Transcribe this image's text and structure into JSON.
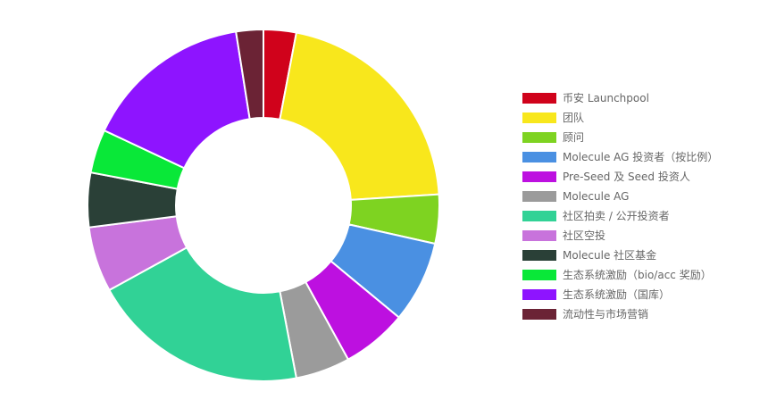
{
  "chart_data": {
    "type": "doughnut",
    "legend": "right",
    "segments": [
      {
        "label": "币安 Launchpool",
        "value": 3,
        "color": "#d0021b"
      },
      {
        "label": "团队",
        "value": 21,
        "color": "#f8e71c"
      },
      {
        "label": "顾问",
        "value": 4.5,
        "color": "#7ed321"
      },
      {
        "label": "Molecule AG 投资者（按比例）",
        "value": 7.5,
        "color": "#4a90e2"
      },
      {
        "label": "Pre-Seed 及 Seed 投资人",
        "value": 6,
        "color": "#bd10e0"
      },
      {
        "label": "Molecule AG",
        "value": 5,
        "color": "#9b9b9b"
      },
      {
        "label": "社区拍卖 / 公开投资者",
        "value": 20,
        "color": "#31d296"
      },
      {
        "label": "社区空投",
        "value": 6,
        "color": "#c873dc"
      },
      {
        "label": "Molecule 社区基金",
        "value": 5,
        "color": "#2a4037"
      },
      {
        "label": "生态系统激励（bio/acc 奖励）",
        "value": 4,
        "color": "#09e838"
      },
      {
        "label": "生态系统激励（国库）",
        "value": 15.5,
        "color": "#8e14ff"
      },
      {
        "label": "流动性与市场营销",
        "value": 2.5,
        "color": "#6b2335"
      }
    ]
  }
}
